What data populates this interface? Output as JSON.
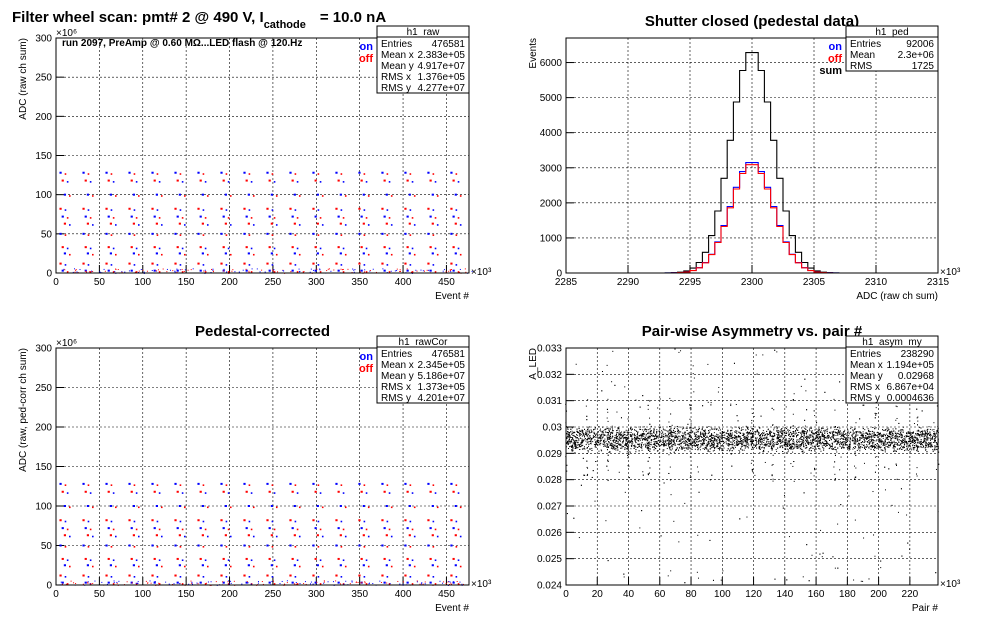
{
  "page_title": {
    "text": "Filter wheel scan: pmt#   2 @   490 V, I",
    "sub": "cathode",
    "tail": "= 10.0 nA"
  },
  "chart_data": [
    {
      "type": "scatter",
      "title": "",
      "ylabel": "ADC (raw ch sum)",
      "xlabel": "Event #",
      "x_exponent": "×10³",
      "y_exponent": "×10⁶",
      "xlim": [
        0,
        476
      ],
      "ylim": [
        0,
        300
      ],
      "xticks": [
        "0",
        "50",
        "100",
        "150",
        "200",
        "250",
        "300",
        "350",
        "400",
        "450"
      ],
      "yticks": [
        "0",
        "50",
        "100",
        "150",
        "200",
        "250",
        "300"
      ],
      "annotation": "run 2097, PreAmp @ 0.60 MΩ...LED flash @  120.Hz",
      "legend": [
        {
          "label": "on",
          "color": "#0000ff"
        },
        {
          "label": "off",
          "color": "#ff0000"
        }
      ],
      "stats": {
        "name": "h1_raw",
        "rows": [
          [
            "Entries",
            "476581"
          ],
          [
            "Mean x",
            "2.383e+05"
          ],
          [
            "Mean y",
            "4.917e+07"
          ],
          [
            "RMS x",
            "1.376e+05"
          ],
          [
            "RMS y",
            "4.277e+07"
          ]
        ]
      },
      "levels": [
        128,
        118,
        100,
        82,
        72,
        63,
        50,
        33,
        25,
        12,
        3
      ],
      "period": 26.5,
      "grid": true
    },
    {
      "type": "line",
      "title": "Shutter closed (pedestal data)",
      "ylabel": "Events",
      "xlabel": "ADC (raw ch sum)",
      "x_exponent": "×10³",
      "xlim": [
        2285,
        2315
      ],
      "ylim": [
        0,
        6700
      ],
      "xticks": [
        "2285",
        "2290",
        "2295",
        "2300",
        "2305",
        "2310",
        "2315"
      ],
      "yticks": [
        "0",
        "1000",
        "2000",
        "3000",
        "4000",
        "5000",
        "6000"
      ],
      "legend": [
        {
          "label": "on",
          "color": "#0000ff"
        },
        {
          "label": "off",
          "color": "#ff0000"
        },
        {
          "label": "sum",
          "color": "#000000"
        }
      ],
      "stats": {
        "name": "h1_ped",
        "rows": [
          [
            "Entries",
            "92006"
          ],
          [
            "Mean",
            "2.3e+06"
          ],
          [
            "RMS",
            "1725"
          ]
        ]
      },
      "series": [
        {
          "name": "sum",
          "color": "#000000",
          "mean": 2300,
          "peak": 6350,
          "sigma": 1.72
        },
        {
          "name": "on",
          "color": "#0000ff",
          "mean": 2300,
          "peak": 3180,
          "sigma": 1.72
        },
        {
          "name": "off",
          "color": "#ff0000",
          "mean": 2300,
          "peak": 3120,
          "sigma": 1.72
        }
      ],
      "grid": true
    },
    {
      "type": "scatter",
      "title": "Pedestal-corrected",
      "ylabel": "ADC (raw, ped-corr ch sum)",
      "xlabel": "Event #",
      "x_exponent": "×10³",
      "y_exponent": "×10⁶",
      "xlim": [
        0,
        476
      ],
      "ylim": [
        0,
        300
      ],
      "xticks": [
        "0",
        "50",
        "100",
        "150",
        "200",
        "250",
        "300",
        "350",
        "400",
        "450"
      ],
      "yticks": [
        "0",
        "50",
        "100",
        "150",
        "200",
        "250",
        "300"
      ],
      "legend": [
        {
          "label": "on",
          "color": "#0000ff"
        },
        {
          "label": "off",
          "color": "#ff0000"
        }
      ],
      "stats": {
        "name": "h1_rawCor",
        "rows": [
          [
            "Entries",
            "476581"
          ],
          [
            "Mean x",
            "2.345e+05"
          ],
          [
            "Mean y",
            "5.186e+07"
          ],
          [
            "RMS x",
            "1.373e+05"
          ],
          [
            "RMS y",
            "4.201e+07"
          ]
        ]
      },
      "levels": [
        128,
        118,
        100,
        82,
        72,
        63,
        50,
        33,
        25,
        12,
        3
      ],
      "period": 26.5,
      "grid": true
    },
    {
      "type": "scatter",
      "title": "Pair-wise Asymmetry vs. pair #",
      "ylabel": "A_LED",
      "xlabel": "Pair #",
      "x_exponent": "×10³",
      "xlim": [
        0,
        238
      ],
      "ylim": [
        0.024,
        0.033
      ],
      "xticks": [
        "0",
        "20",
        "40",
        "60",
        "80",
        "100",
        "120",
        "140",
        "160",
        "180",
        "200",
        "220"
      ],
      "yticks": [
        "0.024",
        "0.025",
        "0.026",
        "0.027",
        "0.028",
        "0.029",
        "0.03",
        "0.031",
        "0.032",
        "0.033"
      ],
      "stats": {
        "name": "h1_asym_my",
        "rows": [
          [
            "Entries",
            "238290"
          ],
          [
            "Mean x",
            "1.194e+05"
          ],
          [
            "Mean y",
            "0.02968"
          ],
          [
            "RMS x",
            "6.867e+04"
          ],
          [
            "RMS y",
            "0.0004636"
          ]
        ]
      },
      "band_center": 0.02955,
      "band_halfwidth": 0.0004,
      "spike_period": 13.2,
      "grid": true
    }
  ]
}
